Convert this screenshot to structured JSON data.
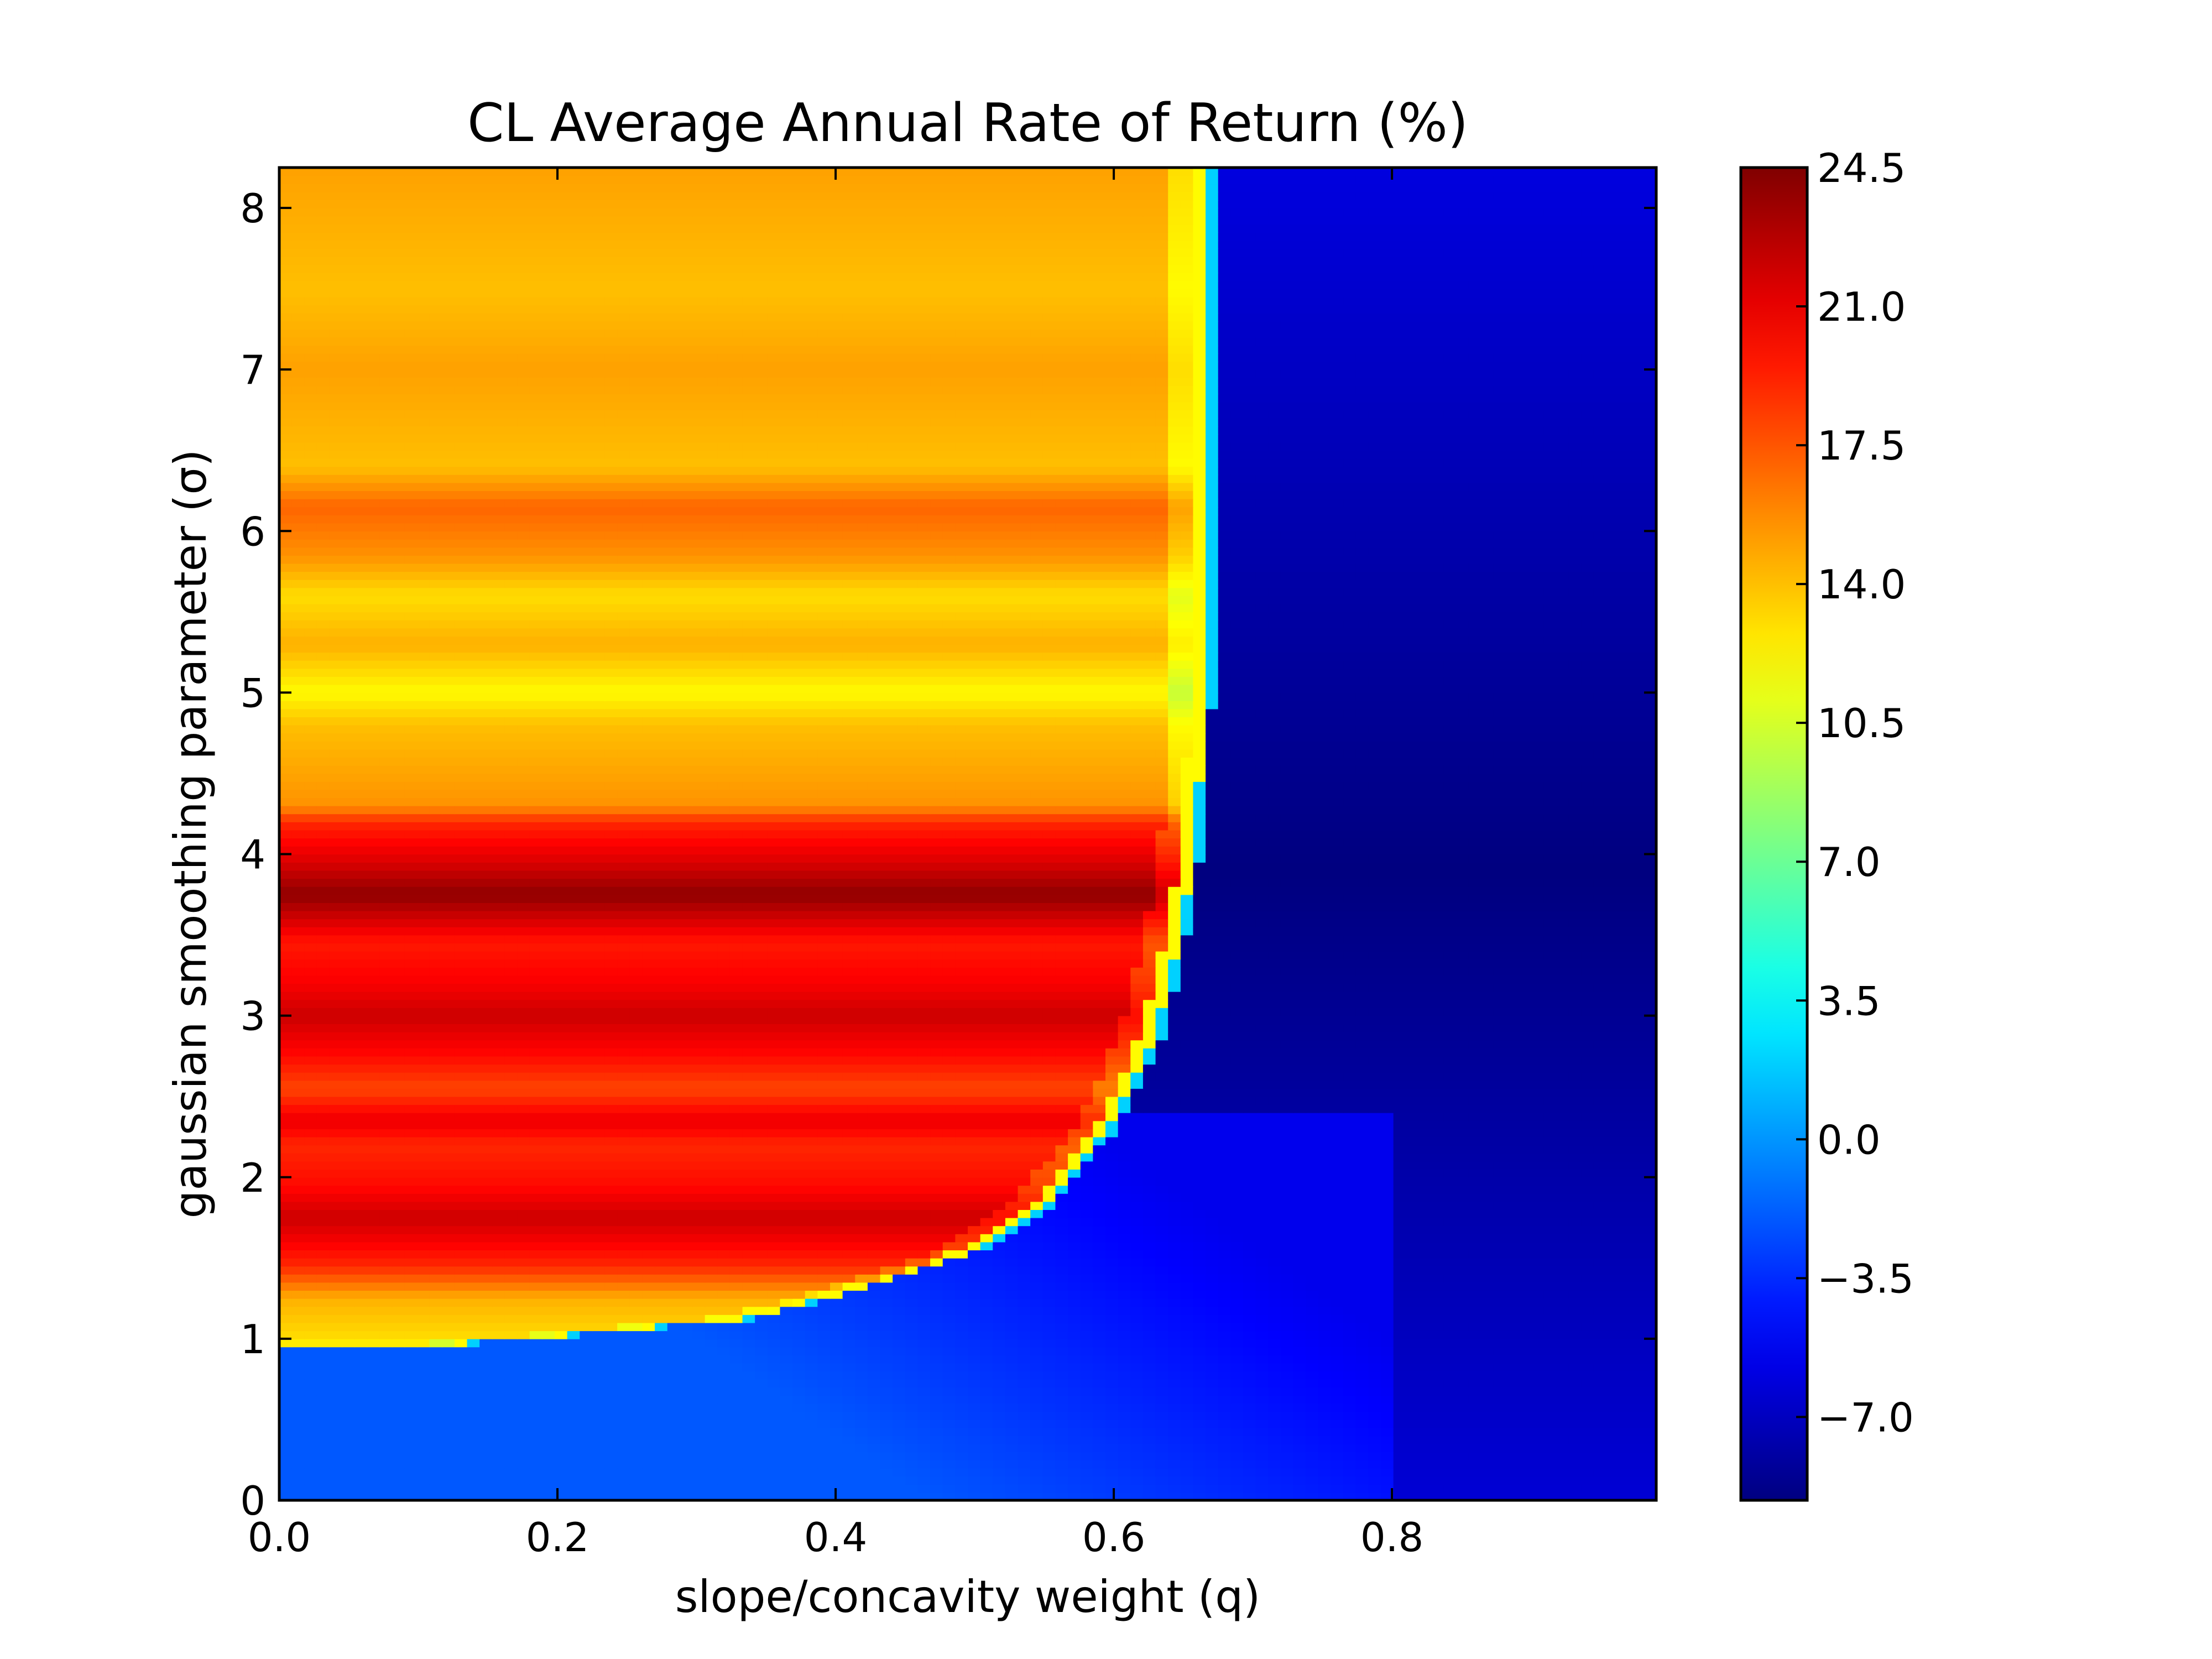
{
  "chart_data": {
    "type": "heatmap",
    "title": "CL Average Annual Rate of Return (%)",
    "xlabel": "slope/concavity weight (q)",
    "ylabel": "gaussian smoothing parameter (σ)",
    "xlim": [
      0.0,
      0.99
    ],
    "ylim": [
      0.0,
      8.25
    ],
    "xticks": [
      0.0,
      0.2,
      0.4,
      0.6,
      0.8
    ],
    "xtick_labels": [
      "0.0",
      "0.2",
      "0.4",
      "0.6",
      "0.8"
    ],
    "yticks": [
      0,
      1,
      2,
      3,
      4,
      5,
      6,
      7,
      8
    ],
    "ytick_labels": [
      "0",
      "1",
      "2",
      "3",
      "4",
      "5",
      "6",
      "7",
      "8"
    ],
    "colormap": "jet",
    "colorbar": {
      "min": -9.1,
      "max": 24.5,
      "ticks": [
        24.5,
        21.0,
        17.5,
        14.0,
        10.5,
        7.0,
        3.5,
        0.0,
        -3.5,
        -7.0
      ],
      "tick_labels": [
        "24.5",
        "21.0",
        "17.5",
        "14.0",
        "10.5",
        "7.0",
        "3.5",
        "0.0",
        "−3.5",
        "−7.0"
      ]
    },
    "boundary_q": [
      [
        0.0,
        0.95
      ],
      [
        0.13,
        0.97
      ],
      [
        0.24,
        1.05
      ],
      [
        0.33,
        1.12
      ],
      [
        0.38,
        1.22
      ],
      [
        0.44,
        1.38
      ],
      [
        0.5,
        1.55
      ],
      [
        0.55,
        1.82
      ],
      [
        0.6,
        2.35
      ],
      [
        0.63,
        2.9
      ],
      [
        0.65,
        3.6
      ],
      [
        0.66,
        4.2
      ],
      [
        0.665,
        5.0
      ],
      [
        0.665,
        8.25
      ]
    ],
    "value_profile_sigma": [
      [
        0.0,
        -6.0
      ],
      [
        1.0,
        13.0
      ],
      [
        1.25,
        14.5
      ],
      [
        1.45,
        19.0
      ],
      [
        1.75,
        22.0
      ],
      [
        1.95,
        20.0
      ],
      [
        2.2,
        19.0
      ],
      [
        2.35,
        21.0
      ],
      [
        2.55,
        18.0
      ],
      [
        2.75,
        20.0
      ],
      [
        3.0,
        22.0
      ],
      [
        3.2,
        20.5
      ],
      [
        3.45,
        19.5
      ],
      [
        3.75,
        24.0
      ],
      [
        3.95,
        21.5
      ],
      [
        4.2,
        19.0
      ],
      [
        4.3,
        15.5
      ],
      [
        4.8,
        14.0
      ],
      [
        5.0,
        12.0
      ],
      [
        5.3,
        14.5
      ],
      [
        5.6,
        13.0
      ],
      [
        5.85,
        15.5
      ],
      [
        6.15,
        17.0
      ],
      [
        6.4,
        14.0
      ],
      [
        7.0,
        15.0
      ],
      [
        7.5,
        14.0
      ],
      [
        8.25,
        15.0
      ]
    ],
    "right_region_value_range": [
      -9.1,
      -6.0
    ],
    "lower_region_value_range": [
      -5.5,
      -2.0
    ]
  }
}
